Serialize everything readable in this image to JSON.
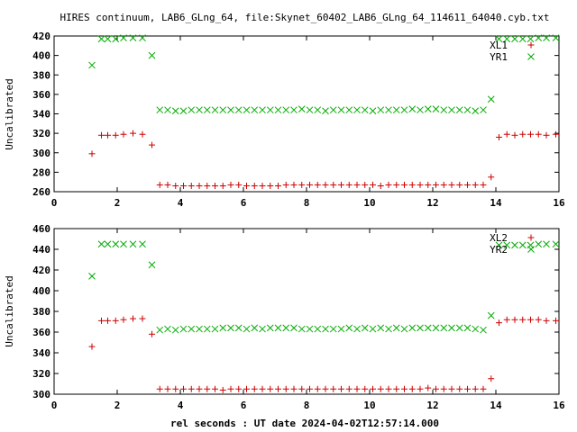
{
  "title": "HIRES continuum, LAB6_GLng_64, file:Skynet_60402_LAB6_GLng_64_114611_64040.cyb.txt",
  "xlabel": "rel seconds : UT date 2024-04-02T12:57:14.000",
  "colors": {
    "red": "#cc0000",
    "green": "#00aa00",
    "axis": "#000000"
  },
  "chart_data": [
    {
      "type": "scatter",
      "ylabel": "Uncalibrated",
      "xlim": [
        0,
        16
      ],
      "ylim": [
        260,
        420
      ],
      "xticks": [
        0,
        2,
        4,
        6,
        8,
        10,
        12,
        14,
        16
      ],
      "yticks": [
        260,
        280,
        300,
        320,
        340,
        360,
        380,
        400,
        420
      ],
      "legend": "top-right",
      "series": [
        {
          "name": "XL1",
          "marker": "plus",
          "color": "#cc0000",
          "points": [
            [
              1.2,
              299
            ],
            [
              1.5,
              318
            ],
            [
              1.7,
              318
            ],
            [
              1.95,
              318
            ],
            [
              2.2,
              319
            ],
            [
              2.5,
              320
            ],
            [
              2.8,
              319
            ],
            [
              3.1,
              308
            ],
            [
              3.35,
              267
            ],
            [
              3.6,
              267
            ],
            [
              3.85,
              266
            ],
            [
              4.1,
              266
            ],
            [
              4.35,
              266
            ],
            [
              4.6,
              266
            ],
            [
              4.85,
              266
            ],
            [
              5.1,
              266
            ],
            [
              5.35,
              266
            ],
            [
              5.6,
              267
            ],
            [
              5.85,
              267
            ],
            [
              6.1,
              266
            ],
            [
              6.35,
              266
            ],
            [
              6.6,
              266
            ],
            [
              6.85,
              266
            ],
            [
              7.1,
              266
            ],
            [
              7.35,
              267
            ],
            [
              7.6,
              267
            ],
            [
              7.85,
              267
            ],
            [
              8.1,
              267
            ],
            [
              8.35,
              267
            ],
            [
              8.6,
              267
            ],
            [
              8.85,
              267
            ],
            [
              9.1,
              267
            ],
            [
              9.35,
              267
            ],
            [
              9.6,
              267
            ],
            [
              9.85,
              267
            ],
            [
              10.1,
              267
            ],
            [
              10.35,
              266
            ],
            [
              10.6,
              267
            ],
            [
              10.85,
              267
            ],
            [
              11.1,
              267
            ],
            [
              11.35,
              267
            ],
            [
              11.6,
              267
            ],
            [
              11.85,
              267
            ],
            [
              12.1,
              267
            ],
            [
              12.35,
              267
            ],
            [
              12.6,
              267
            ],
            [
              12.85,
              267
            ],
            [
              13.1,
              267
            ],
            [
              13.35,
              267
            ],
            [
              13.6,
              267
            ],
            [
              13.85,
              275
            ],
            [
              14.1,
              316
            ],
            [
              14.35,
              319
            ],
            [
              14.6,
              318
            ],
            [
              14.85,
              319
            ],
            [
              15.1,
              319
            ],
            [
              15.35,
              319
            ],
            [
              15.6,
              318
            ],
            [
              15.9,
              319
            ]
          ]
        },
        {
          "name": "YR1",
          "marker": "cross",
          "color": "#00aa00",
          "points": [
            [
              1.2,
              390
            ],
            [
              1.5,
              417
            ],
            [
              1.7,
              417
            ],
            [
              1.95,
              417
            ],
            [
              2.2,
              418
            ],
            [
              2.5,
              418
            ],
            [
              2.8,
              418
            ],
            [
              3.1,
              400
            ],
            [
              3.35,
              344
            ],
            [
              3.6,
              344
            ],
            [
              3.85,
              343
            ],
            [
              4.1,
              343
            ],
            [
              4.35,
              344
            ],
            [
              4.6,
              344
            ],
            [
              4.85,
              344
            ],
            [
              5.1,
              344
            ],
            [
              5.35,
              344
            ],
            [
              5.6,
              344
            ],
            [
              5.85,
              344
            ],
            [
              6.1,
              344
            ],
            [
              6.35,
              344
            ],
            [
              6.6,
              344
            ],
            [
              6.85,
              344
            ],
            [
              7.1,
              344
            ],
            [
              7.35,
              344
            ],
            [
              7.6,
              344
            ],
            [
              7.85,
              345
            ],
            [
              8.1,
              344
            ],
            [
              8.35,
              344
            ],
            [
              8.6,
              343
            ],
            [
              8.85,
              344
            ],
            [
              9.1,
              344
            ],
            [
              9.35,
              344
            ],
            [
              9.6,
              344
            ],
            [
              9.85,
              344
            ],
            [
              10.1,
              343
            ],
            [
              10.35,
              344
            ],
            [
              10.6,
              344
            ],
            [
              10.85,
              344
            ],
            [
              11.1,
              344
            ],
            [
              11.35,
              345
            ],
            [
              11.6,
              344
            ],
            [
              11.85,
              345
            ],
            [
              12.1,
              345
            ],
            [
              12.35,
              344
            ],
            [
              12.6,
              344
            ],
            [
              12.85,
              344
            ],
            [
              13.1,
              344
            ],
            [
              13.35,
              343
            ],
            [
              13.6,
              344
            ],
            [
              13.85,
              355
            ],
            [
              14.1,
              417
            ],
            [
              14.35,
              417
            ],
            [
              14.6,
              417
            ],
            [
              14.85,
              417
            ],
            [
              15.1,
              417
            ],
            [
              15.35,
              418
            ],
            [
              15.6,
              418
            ],
            [
              15.9,
              418
            ]
          ]
        }
      ]
    },
    {
      "type": "scatter",
      "ylabel": "Uncalibrated",
      "xlim": [
        0,
        16
      ],
      "ylim": [
        300,
        460
      ],
      "xticks": [
        0,
        2,
        4,
        6,
        8,
        10,
        12,
        14,
        16
      ],
      "yticks": [
        300,
        320,
        340,
        360,
        380,
        400,
        420,
        440,
        460
      ],
      "legend": "top-right",
      "series": [
        {
          "name": "XL2",
          "marker": "plus",
          "color": "#cc0000",
          "points": [
            [
              1.2,
              346
            ],
            [
              1.5,
              371
            ],
            [
              1.7,
              371
            ],
            [
              1.95,
              371
            ],
            [
              2.2,
              372
            ],
            [
              2.5,
              373
            ],
            [
              2.8,
              373
            ],
            [
              3.1,
              358
            ],
            [
              3.35,
              305
            ],
            [
              3.6,
              305
            ],
            [
              3.85,
              305
            ],
            [
              4.1,
              305
            ],
            [
              4.35,
              305
            ],
            [
              4.6,
              305
            ],
            [
              4.85,
              305
            ],
            [
              5.1,
              305
            ],
            [
              5.35,
              304
            ],
            [
              5.6,
              305
            ],
            [
              5.85,
              305
            ],
            [
              6.1,
              305
            ],
            [
              6.35,
              305
            ],
            [
              6.6,
              305
            ],
            [
              6.85,
              305
            ],
            [
              7.1,
              305
            ],
            [
              7.35,
              305
            ],
            [
              7.6,
              305
            ],
            [
              7.85,
              305
            ],
            [
              8.1,
              305
            ],
            [
              8.35,
              305
            ],
            [
              8.6,
              305
            ],
            [
              8.85,
              305
            ],
            [
              9.1,
              305
            ],
            [
              9.35,
              305
            ],
            [
              9.6,
              305
            ],
            [
              9.85,
              305
            ],
            [
              10.1,
              305
            ],
            [
              10.35,
              305
            ],
            [
              10.6,
              305
            ],
            [
              10.85,
              305
            ],
            [
              11.1,
              305
            ],
            [
              11.35,
              305
            ],
            [
              11.6,
              305
            ],
            [
              11.85,
              306
            ],
            [
              12.1,
              305
            ],
            [
              12.35,
              305
            ],
            [
              12.6,
              305
            ],
            [
              12.85,
              305
            ],
            [
              13.1,
              305
            ],
            [
              13.35,
              305
            ],
            [
              13.6,
              305
            ],
            [
              13.85,
              315
            ],
            [
              14.1,
              369
            ],
            [
              14.35,
              372
            ],
            [
              14.6,
              372
            ],
            [
              14.85,
              372
            ],
            [
              15.1,
              372
            ],
            [
              15.35,
              372
            ],
            [
              15.6,
              371
            ],
            [
              15.9,
              371
            ]
          ]
        },
        {
          "name": "YR2",
          "marker": "cross",
          "color": "#00aa00",
          "points": [
            [
              1.2,
              414
            ],
            [
              1.5,
              445
            ],
            [
              1.7,
              445
            ],
            [
              1.95,
              445
            ],
            [
              2.2,
              445
            ],
            [
              2.5,
              445
            ],
            [
              2.8,
              445
            ],
            [
              3.1,
              425
            ],
            [
              3.35,
              362
            ],
            [
              3.6,
              363
            ],
            [
              3.85,
              362
            ],
            [
              4.1,
              363
            ],
            [
              4.35,
              363
            ],
            [
              4.6,
              363
            ],
            [
              4.85,
              363
            ],
            [
              5.1,
              363
            ],
            [
              5.35,
              364
            ],
            [
              5.6,
              364
            ],
            [
              5.85,
              364
            ],
            [
              6.1,
              363
            ],
            [
              6.35,
              364
            ],
            [
              6.6,
              363
            ],
            [
              6.85,
              364
            ],
            [
              7.1,
              364
            ],
            [
              7.35,
              364
            ],
            [
              7.6,
              364
            ],
            [
              7.85,
              363
            ],
            [
              8.1,
              363
            ],
            [
              8.35,
              363
            ],
            [
              8.6,
              363
            ],
            [
              8.85,
              363
            ],
            [
              9.1,
              363
            ],
            [
              9.35,
              364
            ],
            [
              9.6,
              363
            ],
            [
              9.85,
              364
            ],
            [
              10.1,
              363
            ],
            [
              10.35,
              364
            ],
            [
              10.6,
              363
            ],
            [
              10.85,
              364
            ],
            [
              11.1,
              363
            ],
            [
              11.35,
              364
            ],
            [
              11.6,
              364
            ],
            [
              11.85,
              364
            ],
            [
              12.1,
              364
            ],
            [
              12.35,
              364
            ],
            [
              12.6,
              364
            ],
            [
              12.85,
              364
            ],
            [
              13.1,
              364
            ],
            [
              13.35,
              363
            ],
            [
              13.6,
              362
            ],
            [
              13.85,
              376
            ],
            [
              14.1,
              444
            ],
            [
              14.35,
              444
            ],
            [
              14.6,
              444
            ],
            [
              14.85,
              444
            ],
            [
              15.1,
              444
            ],
            [
              15.35,
              445
            ],
            [
              15.6,
              445
            ],
            [
              15.9,
              445
            ]
          ]
        }
      ]
    }
  ]
}
